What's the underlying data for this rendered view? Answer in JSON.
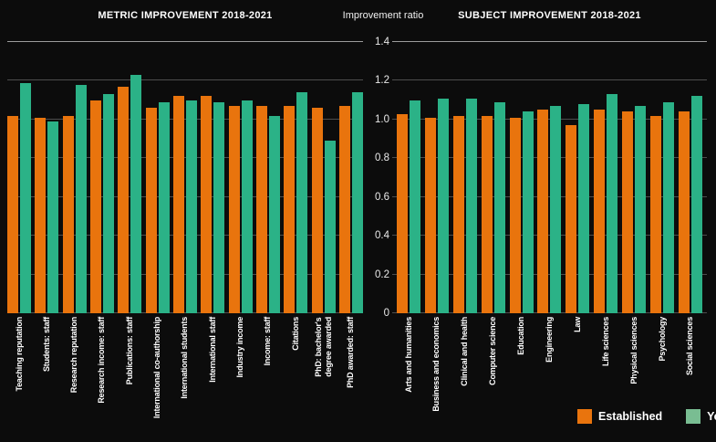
{
  "header": {
    "left_title": "METRIC IMPROVEMENT 2018-2021",
    "axis_title": "Improvement ratio",
    "right_title": "SUBJECT IMPROVEMENT 2018-2021"
  },
  "axis": {
    "ticks": [
      "1.4",
      "1.2",
      "1.0",
      "0.8",
      "0.6",
      "0.4",
      "0.2",
      "0"
    ]
  },
  "colors": {
    "established": "#e9740d",
    "young": "#2bb287",
    "gridline": "#4d4d4d",
    "top_gridline": "#9c9c9c",
    "background": "#0c0c0c",
    "text": "#ffffff"
  },
  "legend": {
    "items": [
      {
        "label": "Established",
        "color": "#e9740d"
      },
      {
        "label": "Young",
        "color": "#79bd92"
      }
    ]
  },
  "chart_data": [
    {
      "type": "bar",
      "title": "METRIC IMPROVEMENT 2018-2021",
      "ylabel": "Improvement ratio",
      "ylim": [
        0,
        1.4
      ],
      "yticks": [
        0,
        0.2,
        0.4,
        0.6,
        0.8,
        1.0,
        1.2,
        1.4
      ],
      "grid": true,
      "legend_position": "bottom-right",
      "categories": [
        "Teaching reputation",
        "Students: staff",
        "Research reputation",
        "Research income: staff",
        "Publications: staff",
        "International co-authorship",
        "International students",
        "International staff",
        "Industry income",
        "Income: staff",
        "Citations",
        "PhD: bachelor's\ndegree awarded",
        "PhD awarded: staff"
      ],
      "series": [
        {
          "name": "Established",
          "values": [
            1.02,
            1.01,
            1.02,
            1.1,
            1.17,
            1.06,
            1.12,
            1.12,
            1.07,
            1.07,
            1.07,
            1.06,
            1.07
          ]
        },
        {
          "name": "Young",
          "values": [
            1.19,
            0.99,
            1.18,
            1.13,
            1.23,
            1.09,
            1.1,
            1.09,
            1.1,
            1.02,
            1.14,
            0.89,
            1.14
          ]
        }
      ]
    },
    {
      "type": "bar",
      "title": "SUBJECT IMPROVEMENT 2018-2021",
      "ylabel": "Improvement ratio",
      "ylim": [
        0,
        1.4
      ],
      "yticks": [
        0,
        0.2,
        0.4,
        0.6,
        0.8,
        1.0,
        1.2,
        1.4
      ],
      "grid": true,
      "legend_position": "bottom-right",
      "categories": [
        "Arts and humanities",
        "Business and economics",
        "Clinical and health",
        "Computer science",
        "Education",
        "Engineering",
        "Law",
        "Life sciences",
        "Physical sciences",
        "Psychology",
        "Social sciences"
      ],
      "series": [
        {
          "name": "Established",
          "values": [
            1.03,
            1.01,
            1.02,
            1.02,
            1.01,
            1.05,
            0.97,
            1.05,
            1.04,
            1.02,
            1.04
          ]
        },
        {
          "name": "Young",
          "values": [
            1.1,
            1.11,
            1.11,
            1.09,
            1.04,
            1.07,
            1.08,
            1.13,
            1.07,
            1.09,
            1.12
          ]
        }
      ]
    }
  ]
}
